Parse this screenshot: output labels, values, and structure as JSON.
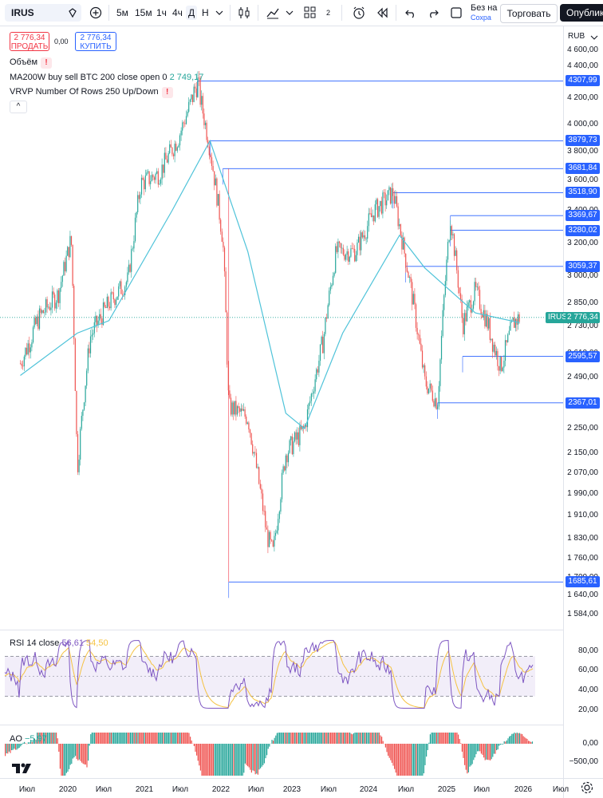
{
  "toolbar": {
    "symbol": "IRUS",
    "intervals": [
      "5м",
      "15м",
      "1ч",
      "4ч",
      "Д",
      "Н"
    ],
    "active_interval": "Д",
    "layout_count": "2",
    "save_line1": "Без на",
    "save_line2": "Сохра",
    "trade_label": "Торговать",
    "publish_label": "Опублико"
  },
  "quote": {
    "sell_price": "2 776,34",
    "sell_label": "ПРОДАТЬ",
    "spread": "0,00",
    "buy_price": "2 776,34",
    "buy_label": "КУПИТЬ"
  },
  "legends": {
    "volume": "Объём",
    "ma": "MA200W buy sell BTC 200 close open 0",
    "ma_value": "2 749,17",
    "vrvp": "VRVP Number Of Rows 250 Up/Down",
    "collapse": "^"
  },
  "currency": "RUB",
  "price_axis": [
    "4 600,00",
    "4 400,00",
    "4 200,00",
    "4 000,00",
    "3 800,00",
    "3 600,00",
    "3 400,00",
    "3 200,00",
    "3 000,00",
    "2 850,00",
    "2 730,00",
    "2 610,00",
    "2 490,00",
    "2 370,00",
    "2 250,00",
    "2 150,00",
    "2 070,00",
    "1 990,00",
    "1 910,00",
    "1 830,00",
    "1 760,00",
    "1 700,00",
    "1 640,00",
    "1 584,00"
  ],
  "price_levels": [
    "4307,99",
    "3879,73",
    "3681,84",
    "3518,90",
    "3369,67",
    "3280,02",
    "3059,37",
    "2595,57",
    "2367,01",
    "1685,61"
  ],
  "current": {
    "symbol": "IRUS",
    "price": "2 776,34"
  },
  "rsi": {
    "label": "RSI 14 close",
    "value": "56,61",
    "ma_value": "54,50",
    "axis": [
      "80,00",
      "60,00",
      "40,00",
      "20,00"
    ]
  },
  "ao": {
    "label": "AO",
    "value": "−5,97",
    "axis": [
      "0,00",
      "−500,00"
    ]
  },
  "time_axis": [
    "Июл",
    "2020",
    "Июл",
    "2021",
    "Июл",
    "2022",
    "Июл",
    "2023",
    "Июл",
    "2024",
    "Июл",
    "2025",
    "Июл",
    "2026",
    "Июл"
  ],
  "chart_data": {
    "type": "candlestick",
    "symbol": "IRUS",
    "interval": "Д",
    "currency": "RUB",
    "close_approx": [
      {
        "t": "2019-06",
        "v": 2560
      },
      {
        "t": "2019-09",
        "v": 2780
      },
      {
        "t": "2019-12",
        "v": 2900
      },
      {
        "t": "2020-02",
        "v": 3230
      },
      {
        "t": "2020-03",
        "v": 2080
      },
      {
        "t": "2020-05",
        "v": 2680
      },
      {
        "t": "2020-08",
        "v": 2850
      },
      {
        "t": "2020-11",
        "v": 2980
      },
      {
        "t": "2021-01",
        "v": 3580
      },
      {
        "t": "2021-04",
        "v": 3650
      },
      {
        "t": "2021-07",
        "v": 3900
      },
      {
        "t": "2021-10",
        "v": 4307.99
      },
      {
        "t": "2021-12",
        "v": 3820
      },
      {
        "t": "2022-02",
        "v": 3220
      },
      {
        "t": "2022-03",
        "v": 2350
      },
      {
        "t": "2022-06",
        "v": 2300
      },
      {
        "t": "2022-09",
        "v": 1840
      },
      {
        "t": "2022-10",
        "v": 1780
      },
      {
        "t": "2022-12",
        "v": 2150
      },
      {
        "t": "2023-03",
        "v": 2250
      },
      {
        "t": "2023-06",
        "v": 2680
      },
      {
        "t": "2023-08",
        "v": 3150
      },
      {
        "t": "2023-11",
        "v": 3150
      },
      {
        "t": "2024-02",
        "v": 3400
      },
      {
        "t": "2024-05",
        "v": 3518.9
      },
      {
        "t": "2024-07",
        "v": 3100
      },
      {
        "t": "2024-10",
        "v": 2470
      },
      {
        "t": "2024-12",
        "v": 2367.01
      },
      {
        "t": "2025-02",
        "v": 3369.67
      },
      {
        "t": "2025-04",
        "v": 2740
      },
      {
        "t": "2025-06",
        "v": 2920
      },
      {
        "t": "2025-08",
        "v": 2740
      },
      {
        "t": "2025-10",
        "v": 2540
      },
      {
        "t": "2025-12",
        "v": 2750
      },
      {
        "t": "2026-01",
        "v": 2776.34
      }
    ],
    "ma200w_approx": [
      {
        "t": "2019-06",
        "v": 2500
      },
      {
        "t": "2020-03",
        "v": 2700
      },
      {
        "t": "2020-08",
        "v": 2760
      },
      {
        "t": "2021-06",
        "v": 3400
      },
      {
        "t": "2021-12",
        "v": 3880
      },
      {
        "t": "2022-06",
        "v": 3150
      },
      {
        "t": "2022-12",
        "v": 2320
      },
      {
        "t": "2023-03",
        "v": 2250
      },
      {
        "t": "2023-09",
        "v": 2700
      },
      {
        "t": "2024-06",
        "v": 3250
      },
      {
        "t": "2024-10",
        "v": 3050
      },
      {
        "t": "2025-06",
        "v": 2800
      },
      {
        "t": "2026-01",
        "v": 2749.17
      }
    ],
    "horizontal_levels": [
      4307.99,
      3879.73,
      3681.84,
      3518.9,
      3369.67,
      3280.02,
      3059.37,
      2595.57,
      2367.01,
      1685.61
    ],
    "rsi_band": [
      30,
      70
    ],
    "rsi_last": 56.61,
    "rsi_ma_last": 54.5,
    "ao_last": -5.97
  }
}
